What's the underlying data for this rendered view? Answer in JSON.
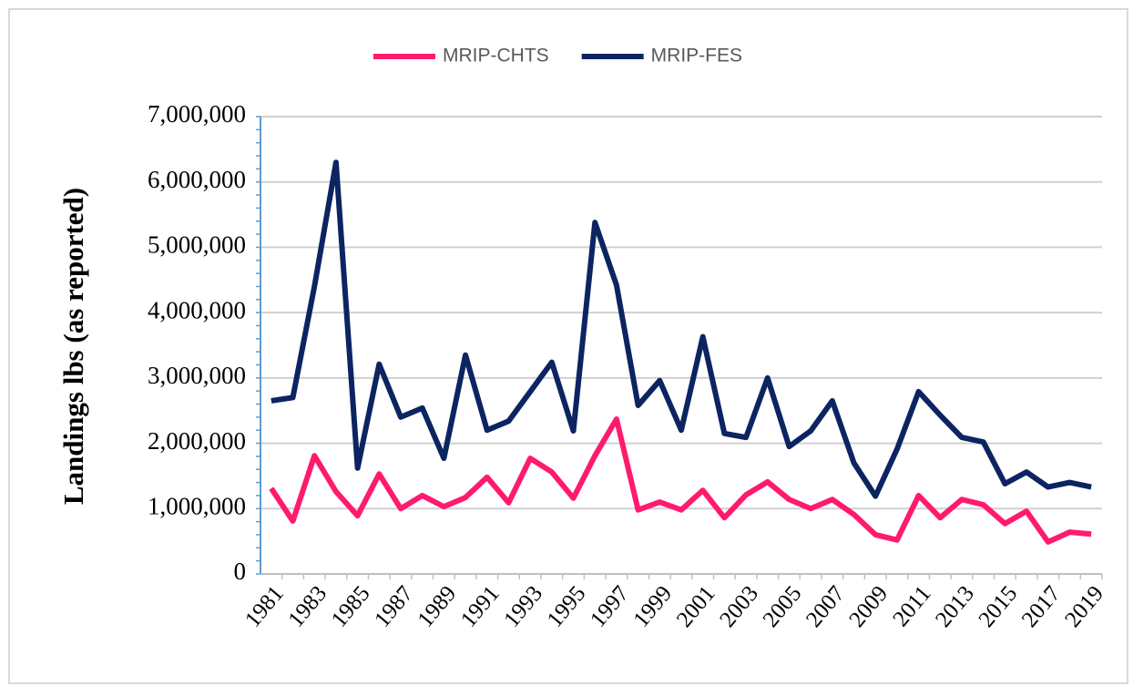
{
  "chart_data": {
    "type": "line",
    "y_label": "Landings lbs (as reported)",
    "categories": [
      "1981",
      null,
      "1983",
      null,
      "1985",
      null,
      "1987",
      null,
      "1989",
      null,
      "1991",
      null,
      "1993",
      null,
      "1995",
      null,
      "1997",
      null,
      "1999",
      null,
      "2001",
      null,
      "2003",
      null,
      "2005",
      null,
      "2007",
      null,
      "2009",
      null,
      "2011",
      null,
      "2013",
      null,
      "2015",
      null,
      "2017",
      null,
      "2019"
    ],
    "series": [
      {
        "name": "MRIP-CHTS",
        "color": "#ff1a6e",
        "values": [
          1310000,
          810000,
          1810000,
          1260000,
          890000,
          1530000,
          1000000,
          1200000,
          1030000,
          1170000,
          1480000,
          1090000,
          1770000,
          1560000,
          1160000,
          1810000,
          2370000,
          980000,
          1100000,
          980000,
          1280000,
          860000,
          1210000,
          1410000,
          1140000,
          1000000,
          1140000,
          910000,
          600000,
          520000,
          1200000,
          860000,
          1140000,
          1060000,
          770000,
          960000,
          490000,
          640000,
          610000
        ]
      },
      {
        "name": "MRIP-FES",
        "color": "#0c2461",
        "values": [
          2650000,
          2700000,
          4400000,
          6300000,
          1620000,
          3210000,
          2400000,
          2540000,
          1770000,
          3350000,
          2200000,
          2340000,
          2790000,
          3240000,
          2190000,
          5380000,
          4420000,
          2580000,
          2960000,
          2200000,
          3630000,
          2150000,
          2090000,
          3000000,
          1950000,
          2190000,
          2650000,
          1700000,
          1190000,
          1910000,
          2790000,
          2430000,
          2090000,
          2020000,
          1380000,
          1560000,
          1330000,
          1400000,
          1330000
        ]
      }
    ],
    "ylim": [
      0,
      7000000
    ],
    "yticks": [
      0,
      {
        "value": 1000000,
        "label": "1,000,000"
      },
      {
        "value": 2000000,
        "label": "2,000,000"
      },
      {
        "value": 3000000,
        "label": "3,000,000"
      },
      {
        "value": 4000000,
        "label": "4,000,000"
      },
      {
        "value": 5000000,
        "label": "5,000,000"
      },
      {
        "value": 6000000,
        "label": "6,000,000"
      },
      {
        "value": 7000000,
        "label": "7,000,000"
      }
    ],
    "grid": true,
    "legend": "top"
  }
}
